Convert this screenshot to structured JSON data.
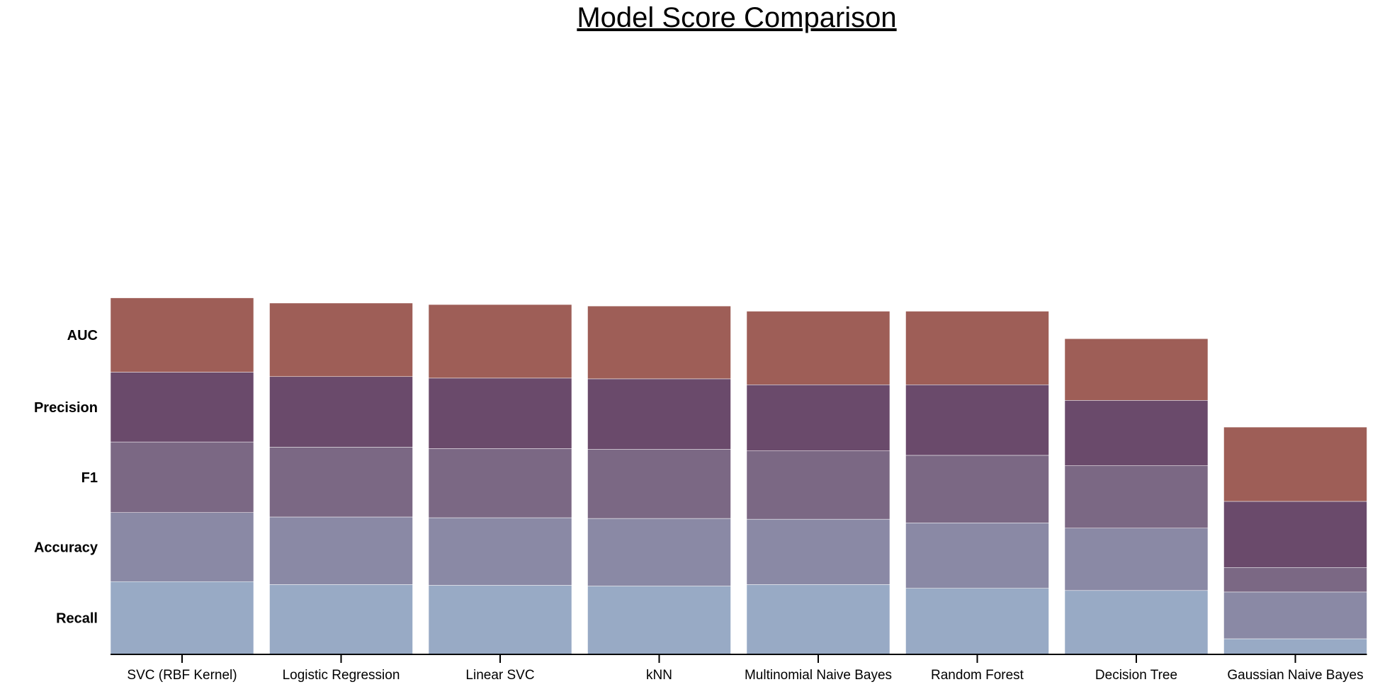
{
  "chart_data": {
    "type": "bar",
    "stacked": true,
    "title": "Model Score Comparison",
    "xlabel": "",
    "ylabel": "",
    "y_axis_shown": false,
    "grid": false,
    "legend": "row labels on left side",
    "categories": [
      "SVC (RBF Kernel)",
      "Logistic Regression",
      "Linear SVC",
      "kNN",
      "Multinomial Naive Bayes",
      "Random Forest",
      "Decision Tree",
      "Gaussian Naive Bayes"
    ],
    "row_labels": [
      "AUC",
      "Precision",
      "F1",
      "Accuracy",
      "Recall"
    ],
    "series": [
      {
        "name": "Recall",
        "color": "#98aac5",
        "values": [
          0.98,
          0.94,
          0.93,
          0.92,
          0.94,
          0.89,
          0.86,
          0.21
        ]
      },
      {
        "name": "Accuracy",
        "color": "#8a89a5",
        "values": [
          0.93,
          0.91,
          0.91,
          0.91,
          0.88,
          0.88,
          0.84,
          0.63
        ]
      },
      {
        "name": "F1",
        "color": "#7b6884",
        "values": [
          0.95,
          0.94,
          0.93,
          0.93,
          0.92,
          0.91,
          0.84,
          0.33
        ]
      },
      {
        "name": "Precision",
        "color": "#6a4a6b",
        "values": [
          0.94,
          0.95,
          0.95,
          0.95,
          0.89,
          0.95,
          0.88,
          0.89
        ]
      },
      {
        "name": "AUC",
        "color": "#9e5e57",
        "values": [
          1.0,
          0.99,
          0.99,
          0.98,
          0.99,
          0.99,
          0.83,
          1.0
        ]
      }
    ],
    "ylim": [
      0,
      8.0
    ]
  }
}
